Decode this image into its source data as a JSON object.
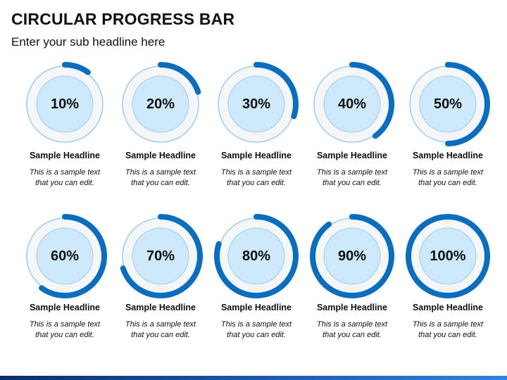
{
  "header": {
    "title": "CIRCULAR PROGRESS BAR",
    "subtitle": "Enter your sub headline here"
  },
  "colors": {
    "arc": "#0a6ec0",
    "ring_outline": "#9ccdf0",
    "inner_fill": "#cfe9fc",
    "inner_stroke": "#9ccdf0",
    "track_fill": "#f4f6f8"
  },
  "items": [
    {
      "label": "10%",
      "value": 10,
      "headline": "Sample Headline",
      "text_line1": "This is a sample text",
      "text_line2": "that you can edit."
    },
    {
      "label": "20%",
      "value": 20,
      "headline": "Sample Headline",
      "text_line1": "This is a sample text",
      "text_line2": "that you can edit."
    },
    {
      "label": "30%",
      "value": 30,
      "headline": "Sample Headline",
      "text_line1": "This is a sample text",
      "text_line2": "that you can edit."
    },
    {
      "label": "40%",
      "value": 40,
      "headline": "Sample Headline",
      "text_line1": "This is a sample text",
      "text_line2": "that you can edit."
    },
    {
      "label": "50%",
      "value": 50,
      "headline": "Sample Headline",
      "text_line1": "This is a sample text",
      "text_line2": "that you can edit."
    },
    {
      "label": "60%",
      "value": 60,
      "headline": "Sample Headline",
      "text_line1": "This is a sample text",
      "text_line2": "that you can edit."
    },
    {
      "label": "70%",
      "value": 70,
      "headline": "Sample Headline",
      "text_line1": "This is a sample text",
      "text_line2": "that you can edit."
    },
    {
      "label": "80%",
      "value": 80,
      "headline": "Sample Headline",
      "text_line1": "This is a sample text",
      "text_line2": "that you can edit."
    },
    {
      "label": "90%",
      "value": 90,
      "headline": "Sample Headline",
      "text_line1": "This is a sample text",
      "text_line2": "that you can edit."
    },
    {
      "label": "100%",
      "value": 100,
      "headline": "Sample Headline",
      "text_line1": "This is a sample text",
      "text_line2": "that you can edit."
    }
  ]
}
